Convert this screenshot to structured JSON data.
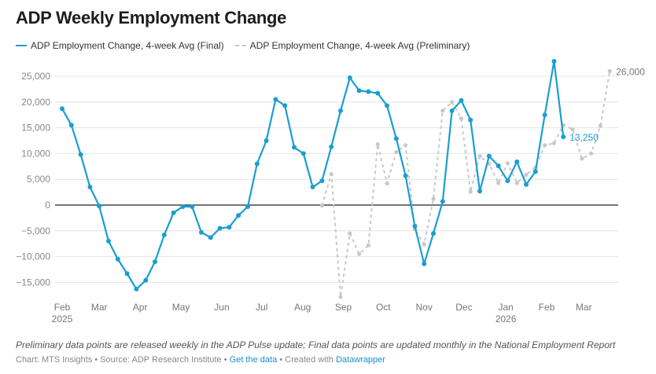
{
  "chart_data": {
    "type": "line",
    "title": "ADP Weekly Employment Change",
    "xlabel": "",
    "ylabel": "",
    "ylim": [
      -18000,
      28500
    ],
    "grid": true,
    "legend_placement": "top-left",
    "y_ticks": [
      {
        "value": 25000,
        "label": "25,000"
      },
      {
        "value": 20000,
        "label": "20,000"
      },
      {
        "value": 15000,
        "label": "15,000"
      },
      {
        "value": 10000,
        "label": "10,000"
      },
      {
        "value": 5000,
        "label": "5,000"
      },
      {
        "value": 0,
        "label": "0"
      },
      {
        "value": -5000,
        "label": "-5,000"
      },
      {
        "value": -10000,
        "label": "-10,000"
      },
      {
        "value": -15000,
        "label": "-15,000"
      }
    ],
    "x_unit": "week index from first week of Feb 2025",
    "x_ticks": [
      {
        "x": 0,
        "label": "Feb",
        "sub": "2025"
      },
      {
        "x": 4,
        "label": "Mar"
      },
      {
        "x": 8.4,
        "label": "Apr"
      },
      {
        "x": 12.8,
        "label": "May"
      },
      {
        "x": 17.2,
        "label": "Jun"
      },
      {
        "x": 21.5,
        "label": "Jul"
      },
      {
        "x": 25.9,
        "label": "Aug"
      },
      {
        "x": 30.3,
        "label": "Sep"
      },
      {
        "x": 34.6,
        "label": "Oct"
      },
      {
        "x": 39,
        "label": "Nov"
      },
      {
        "x": 43.3,
        "label": "Dec"
      },
      {
        "x": 47.8,
        "label": "Jan",
        "sub": "2026"
      },
      {
        "x": 52.2,
        "label": "Feb"
      },
      {
        "x": 56.2,
        "label": "Mar"
      }
    ],
    "series": [
      {
        "name": "ADP Employment Change, 4-week Avg (Final)",
        "color": "#1a9ed1",
        "style": "solid",
        "x_start": 0,
        "values": [
          18700,
          15500,
          9800,
          3500,
          -200,
          -7000,
          -10500,
          -13300,
          -16300,
          -14600,
          -11000,
          -5800,
          -1500,
          -300,
          -300,
          -5300,
          -6300,
          -4500,
          -4300,
          -2000,
          -300,
          8000,
          12500,
          20500,
          19300,
          11200,
          10000,
          3500,
          4700,
          11300,
          18300,
          24700,
          22200,
          22000,
          21700,
          19300,
          12900,
          5700,
          -4100,
          -11400,
          -5500,
          700,
          18300,
          20300,
          16500,
          2700,
          9500,
          7600,
          4700,
          8400,
          4000,
          6500,
          17500,
          27900,
          13250
        ],
        "end_label": "13,250"
      },
      {
        "name": "ADP Employment Change, 4-week Avg (Preliminary)",
        "color": "#c8c8c8",
        "style": "dashed",
        "x_start": 28,
        "values": [
          -100,
          6000,
          -17800,
          -5500,
          -9500,
          -7800,
          11800,
          4200,
          10300,
          11600,
          -4700,
          -7600,
          1200,
          18300,
          20000,
          16800,
          2600,
          9500,
          8000,
          4300,
          8100,
          4300,
          5900,
          7300,
          11600,
          12000,
          15500,
          14700,
          9000,
          10000,
          15400,
          26000
        ],
        "end_label": "26,000"
      }
    ]
  },
  "notes": "Preliminary data points are released weekly in the ADP Pulse update; Final data points are updated monthly in the National Employment Report",
  "byline": {
    "chart": "Chart: MTS Insights",
    "sep1": " • ",
    "source": "Source: ADP Research Institute",
    "sep2": " • ",
    "get_data": "Get the data",
    "sep3": " • ",
    "created": "Created with ",
    "datawrapper": "Datawrapper"
  }
}
